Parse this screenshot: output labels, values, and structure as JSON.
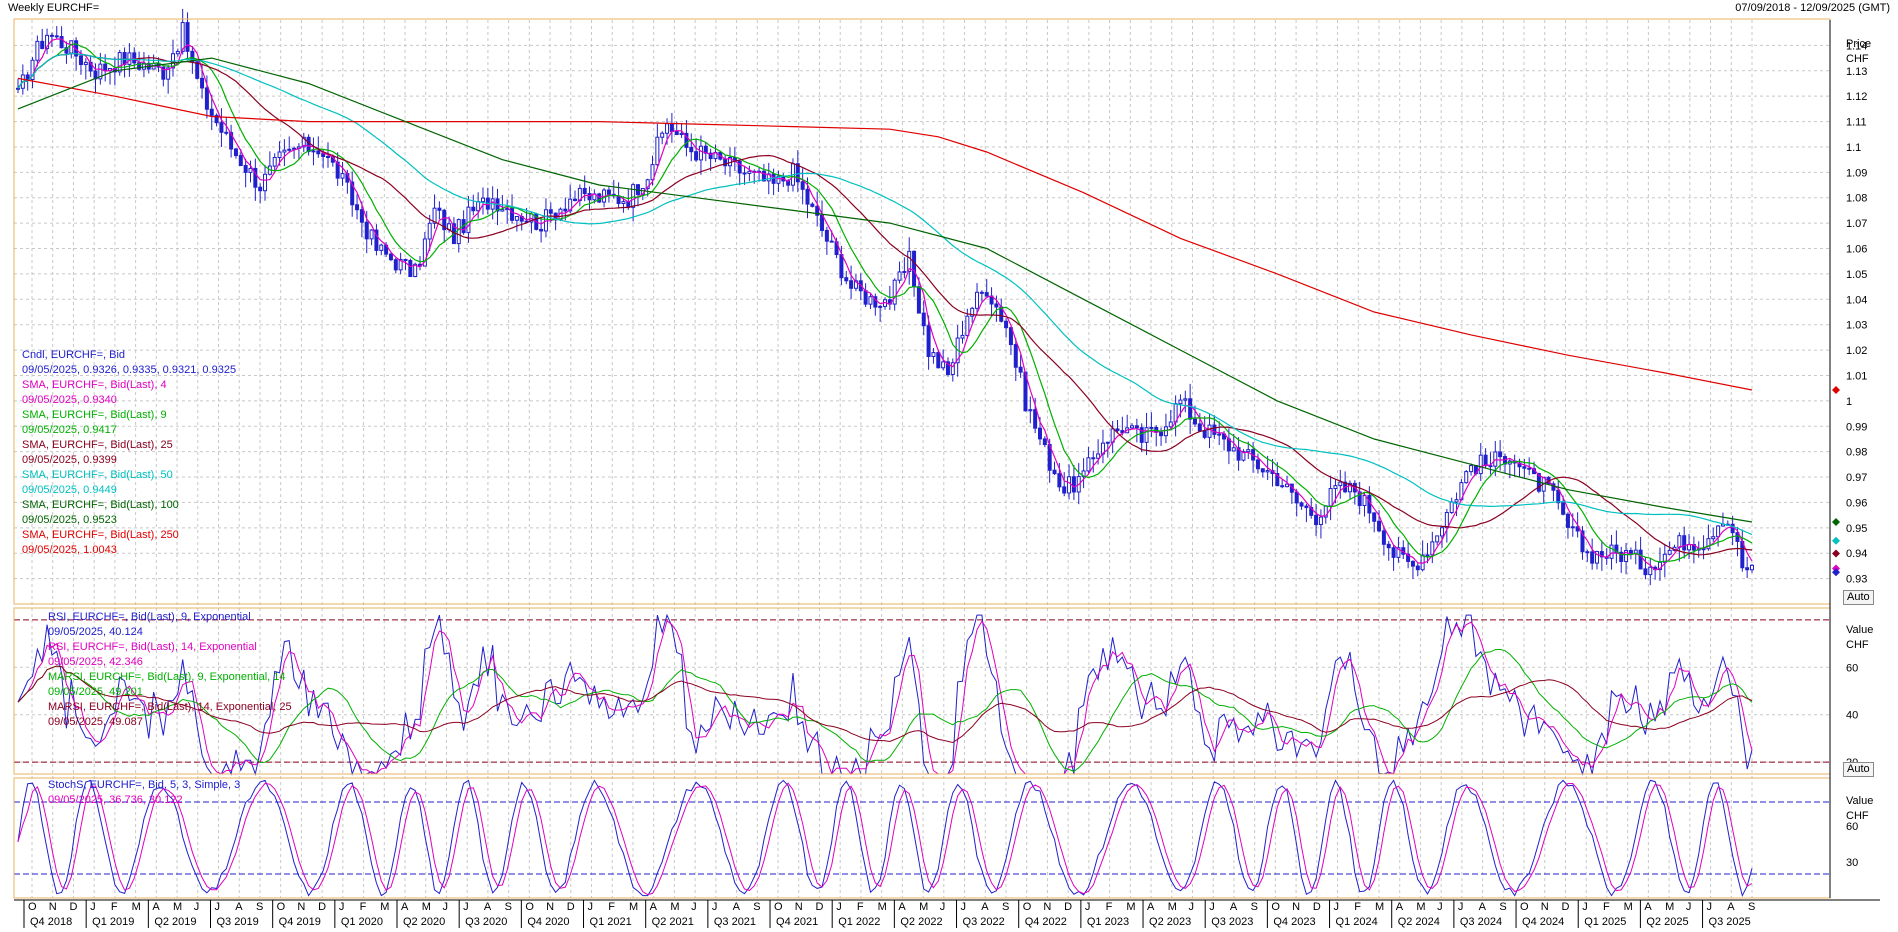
{
  "header": {
    "title": "Weekly EURCHF=",
    "range": "07/09/2018 - 12/09/2025 (GMT)"
  },
  "colors": {
    "candle": "#2020cc",
    "sma4": "#e000c0",
    "sma9": "#00b000",
    "sma25": "#8b0020",
    "sma50": "#00c0c0",
    "sma100": "#006400",
    "sma250": "#e00000",
    "rsi9": "#2020cc",
    "rsi14": "#e000c0",
    "marsi9": "#00b000",
    "marsi14": "#8b0020",
    "stochK": "#2020cc",
    "stochD": "#e000c0",
    "grid": "#c8c8c8",
    "border": "#e8b060"
  },
  "price_panel": {
    "axis_title_1": "Price",
    "axis_title_2": "CHF",
    "auto_label": "Auto",
    "legend": [
      {
        "label": "Cndl, EURCHF=, Bid",
        "value": "09/05/2025, 0.9326, 0.9335, 0.9321, 0.9325",
        "color": "#2020cc"
      },
      {
        "label": "SMA, EURCHF=, Bid(Last),  4",
        "value": "09/05/2025, 0.9340",
        "color": "#e000c0"
      },
      {
        "label": "SMA, EURCHF=, Bid(Last),  9",
        "value": "09/05/2025, 0.9417",
        "color": "#00b000"
      },
      {
        "label": "SMA, EURCHF=, Bid(Last),  25",
        "value": "09/05/2025, 0.9399",
        "color": "#8b0020"
      },
      {
        "label": "SMA, EURCHF=, Bid(Last),  50",
        "value": "09/05/2025, 0.9449",
        "color": "#00c0c0"
      },
      {
        "label": "SMA, EURCHF=, Bid(Last),  100",
        "value": "09/05/2025, 0.9523",
        "color": "#006400"
      },
      {
        "label": "SMA, EURCHF=, Bid(Last),  250",
        "value": "09/05/2025, 1.0043",
        "color": "#e00000"
      }
    ],
    "y_ticks": [
      "1.14",
      "1.13",
      "1.12",
      "1.11",
      "1.1",
      "1.09",
      "1.08",
      "1.07",
      "1.06",
      "1.05",
      "1.04",
      "1.03",
      "1.02",
      "1.01",
      "1",
      "0.99",
      "0.98",
      "0.97",
      "0.96",
      "0.95",
      "0.94",
      "0.93"
    ]
  },
  "rsi_panel": {
    "axis_title_1": "Value",
    "axis_title_2": "CHF",
    "auto_label": "Auto",
    "y_ticks": [
      "60",
      "40",
      "20"
    ],
    "legend": [
      {
        "label": "RSI, EURCHF=, Bid(Last),  9, Exponential",
        "value": "09/05/2025, 40.124",
        "color": "#2020cc"
      },
      {
        "label": "RSI, EURCHF=, Bid(Last),  14, Exponential",
        "value": "09/05/2025, 42.346",
        "color": "#e000c0"
      },
      {
        "label": "MARSI, EURCHF=, Bid(Last),  9, Exponential, 14",
        "value": "09/05/2025, 49.201",
        "color": "#00b000"
      },
      {
        "label": "MARSI, EURCHF=, Bid(Last),  14, Exponential, 25",
        "value": "09/05/2025, 49.087",
        "color": "#8b0020"
      }
    ]
  },
  "stoch_panel": {
    "axis_title_1": "Value",
    "axis_title_2": "CHF",
    "y_ticks": [
      "60",
      "30"
    ],
    "legend": [
      {
        "label": "StochS, EURCHF=, Bid,  5, 3, Simple, 3",
        "value": "09/05/2025, 36.736, 30.122",
        "color": "#2020cc"
      }
    ]
  },
  "x_axis": {
    "months": [
      "O",
      "N",
      "D",
      "J",
      "F",
      "M",
      "A",
      "M",
      "J",
      "J",
      "A",
      "S",
      "O",
      "N",
      "D",
      "J",
      "F",
      "M",
      "A",
      "M",
      "J",
      "J",
      "A",
      "S",
      "O",
      "N",
      "D",
      "J",
      "F",
      "M",
      "A",
      "M",
      "J",
      "J",
      "A",
      "S",
      "O",
      "N",
      "D",
      "J",
      "F",
      "M",
      "A",
      "M",
      "J",
      "J",
      "A",
      "S",
      "O",
      "N",
      "D",
      "J",
      "F",
      "M",
      "A",
      "M",
      "J",
      "J",
      "A",
      "S",
      "O",
      "N",
      "D",
      "J",
      "F",
      "M",
      "A",
      "M",
      "J",
      "J",
      "A",
      "S",
      "O",
      "N",
      "D",
      "J",
      "F",
      "M",
      "A",
      "M",
      "J",
      "J",
      "A",
      "S"
    ],
    "quarters": [
      "Q4 2018",
      "Q1 2019",
      "Q2 2019",
      "Q3 2019",
      "Q4 2019",
      "Q1 2020",
      "Q2 2020",
      "Q3 2020",
      "Q4 2020",
      "Q1 2021",
      "Q2 2021",
      "Q3 2021",
      "Q4 2021",
      "Q1 2022",
      "Q2 2022",
      "Q3 2022",
      "Q4 2022",
      "Q1 2023",
      "Q2 2023",
      "Q3 2023",
      "Q4 2023",
      "Q1 2024",
      "Q2 2024",
      "Q3 2024",
      "Q4 2024",
      "Q1 2025",
      "Q2 2025",
      "Q3 2025"
    ]
  },
  "chart_data": [
    {
      "type": "line",
      "subtype": "candlestick",
      "series_name": "Cndl, EURCHF=, Bid",
      "x_start": "2018-09-14",
      "x_end": "2025-05-09",
      "ylim": [
        0.92,
        1.15
      ],
      "grid": true,
      "anchors_close": [
        [
          0,
          1.12
        ],
        [
          3,
          1.135
        ],
        [
          6,
          1.145
        ],
        [
          10,
          1.14
        ],
        [
          16,
          1.13
        ],
        [
          22,
          1.135
        ],
        [
          30,
          1.13
        ],
        [
          34,
          1.145
        ],
        [
          38,
          1.12
        ],
        [
          44,
          1.1
        ],
        [
          50,
          1.085
        ],
        [
          54,
          1.095
        ],
        [
          58,
          1.1
        ],
        [
          62,
          1.1
        ],
        [
          66,
          1.09
        ],
        [
          70,
          1.075
        ],
        [
          74,
          1.06
        ],
        [
          78,
          1.055
        ],
        [
          82,
          1.05
        ],
        [
          86,
          1.075
        ],
        [
          90,
          1.065
        ],
        [
          94,
          1.075
        ],
        [
          98,
          1.08
        ],
        [
          102,
          1.075
        ],
        [
          108,
          1.07
        ],
        [
          114,
          1.08
        ],
        [
          120,
          1.08
        ],
        [
          126,
          1.08
        ],
        [
          130,
          1.09
        ],
        [
          134,
          1.11
        ],
        [
          138,
          1.1
        ],
        [
          144,
          1.095
        ],
        [
          150,
          1.09
        ],
        [
          156,
          1.085
        ],
        [
          160,
          1.09
        ],
        [
          164,
          1.075
        ],
        [
          168,
          1.06
        ],
        [
          172,
          1.045
        ],
        [
          176,
          1.04
        ],
        [
          180,
          1.04
        ],
        [
          184,
          1.055
        ],
        [
          188,
          1.02
        ],
        [
          192,
          1.01
        ],
        [
          196,
          1.035
        ],
        [
          200,
          1.045
        ],
        [
          204,
          1.03
        ],
        [
          208,
          1.0
        ],
        [
          212,
          0.98
        ],
        [
          216,
          0.965
        ],
        [
          220,
          0.97
        ],
        [
          224,
          0.985
        ],
        [
          228,
          0.99
        ],
        [
          232,
          0.985
        ],
        [
          236,
          0.99
        ],
        [
          240,
          1.0
        ],
        [
          244,
          0.99
        ],
        [
          248,
          0.985
        ],
        [
          252,
          0.98
        ],
        [
          256,
          0.975
        ],
        [
          260,
          0.97
        ],
        [
          264,
          0.96
        ],
        [
          268,
          0.955
        ],
        [
          272,
          0.965
        ],
        [
          276,
          0.965
        ],
        [
          280,
          0.955
        ],
        [
          284,
          0.94
        ],
        [
          288,
          0.935
        ],
        [
          292,
          0.945
        ],
        [
          296,
          0.96
        ],
        [
          300,
          0.975
        ],
        [
          304,
          0.975
        ],
        [
          308,
          0.98
        ],
        [
          312,
          0.97
        ],
        [
          316,
          0.965
        ],
        [
          320,
          0.95
        ],
        [
          324,
          0.94
        ],
        [
          328,
          0.94
        ],
        [
          332,
          0.94
        ],
        [
          336,
          0.935
        ],
        [
          340,
          0.94
        ],
        [
          344,
          0.945
        ],
        [
          348,
          0.945
        ],
        [
          352,
          0.955
        ],
        [
          354,
          0.95
        ],
        [
          356,
          0.935
        ],
        [
          358,
          0.9325
        ]
      ]
    },
    {
      "type": "line",
      "series": [
        {
          "name": "SMA, EURCHF=, Bid(Last),  250",
          "points": [
            [
              0,
              1.127
            ],
            [
              20,
              1.12
            ],
            [
              40,
              1.112
            ],
            [
              60,
              1.11
            ],
            [
              80,
              1.11
            ],
            [
              100,
              1.11
            ],
            [
              120,
              1.11
            ],
            [
              140,
              1.109
            ],
            [
              160,
              1.108
            ],
            [
              180,
              1.107
            ],
            [
              190,
              1.104
            ],
            [
              200,
              1.098
            ],
            [
              220,
              1.082
            ],
            [
              240,
              1.064
            ],
            [
              260,
              1.05
            ],
            [
              280,
              1.035
            ],
            [
              300,
              1.026
            ],
            [
              320,
              1.018
            ],
            [
              340,
              1.011
            ],
            [
              358,
              1.0043
            ]
          ]
        },
        {
          "name": "SMA, EURCHF=, Bid(Last),  100",
          "points": [
            [
              0,
              1.115
            ],
            [
              20,
              1.13
            ],
            [
              40,
              1.135
            ],
            [
              60,
              1.125
            ],
            [
              80,
              1.11
            ],
            [
              100,
              1.095
            ],
            [
              120,
              1.085
            ],
            [
              140,
              1.08
            ],
            [
              160,
              1.075
            ],
            [
              180,
              1.07
            ],
            [
              200,
              1.06
            ],
            [
              220,
              1.04
            ],
            [
              240,
              1.02
            ],
            [
              260,
              1.0
            ],
            [
              280,
              0.985
            ],
            [
              300,
              0.975
            ],
            [
              320,
              0.965
            ],
            [
              340,
              0.958
            ],
            [
              358,
              0.9523
            ]
          ]
        }
      ]
    },
    {
      "type": "line",
      "panel": "RSI",
      "ylim": [
        15,
        85
      ],
      "levels": [
        20,
        80
      ]
    },
    {
      "type": "line",
      "panel": "StochS",
      "ylim": [
        0,
        100
      ],
      "levels": [
        20,
        80
      ]
    }
  ]
}
